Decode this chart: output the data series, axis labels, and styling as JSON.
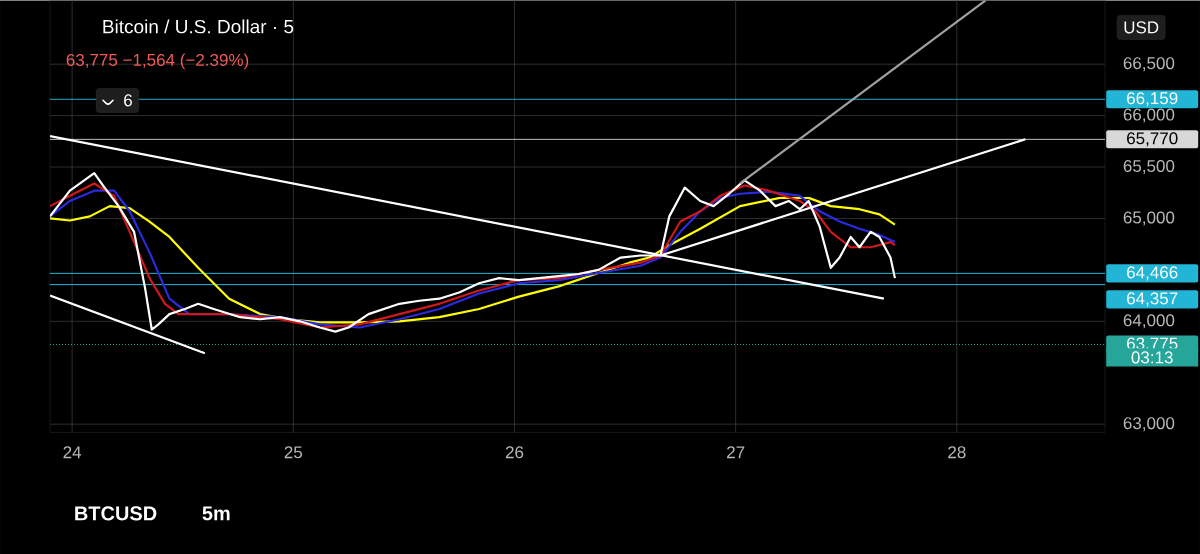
{
  "chart_data": {
    "type": "line",
    "title": "Bitcoin / U.S. Dollar · 5",
    "annotations": [
      "63,775  −1,564 (−2.39%)",
      "6",
      "USD",
      "03:13",
      "BTCUSD",
      "5m"
    ],
    "xlim": [
      23.9,
      28.67
    ],
    "ylim": [
      62920,
      67120
    ],
    "xticks": [
      24,
      25,
      26,
      27,
      28
    ],
    "yticks": [
      {
        "value": 63000,
        "label": "63,000"
      },
      {
        "value": 64000,
        "label": "64,000"
      },
      {
        "value": 65000,
        "label": "65,000"
      },
      {
        "value": 65500,
        "label": "65,500"
      },
      {
        "value": 66000,
        "label": "66,000"
      },
      {
        "value": 66500,
        "label": "66,500"
      }
    ],
    "grid": true,
    "series": [
      {
        "color": "#ffff00",
        "x": [
          23.9,
          23.99,
          24.08,
          24.17,
          24.26,
          24.35,
          24.44,
          24.57,
          24.71,
          24.85,
          24.98,
          25.12,
          25.3,
          25.48,
          25.66,
          25.84,
          26.02,
          26.2,
          26.38,
          26.52,
          26.61,
          26.7,
          26.84,
          27.02,
          27.2,
          27.33,
          27.43,
          27.56,
          27.65,
          27.72
        ],
        "values": [
          65000,
          64980,
          65020,
          65120,
          65100,
          64970,
          64820,
          64520,
          64220,
          64070,
          64020,
          63990,
          63990,
          64000,
          64040,
          64120,
          64240,
          64340,
          64470,
          64570,
          64620,
          64740,
          64900,
          65120,
          65200,
          65200,
          65120,
          65090,
          65040,
          64940
        ]
      },
      {
        "color": "#2a2ae0",
        "x": [
          23.9,
          23.99,
          24.1,
          24.19,
          24.26,
          24.35,
          24.44,
          24.53,
          24.71,
          24.94,
          25.12,
          25.3,
          25.48,
          25.66,
          25.84,
          26.02,
          26.2,
          26.38,
          26.57,
          26.66,
          26.75,
          26.84,
          26.93,
          27.02,
          27.15,
          27.29,
          27.38,
          27.47,
          27.56,
          27.65,
          27.72
        ],
        "values": [
          65020,
          65170,
          65270,
          65270,
          65070,
          64670,
          64220,
          64070,
          64070,
          64040,
          63970,
          63940,
          64020,
          64120,
          64270,
          64370,
          64400,
          64470,
          64540,
          64620,
          64870,
          65070,
          65200,
          65240,
          65260,
          65220,
          65070,
          64970,
          64900,
          64840,
          64770
        ]
      },
      {
        "color": "#d01818",
        "x": [
          23.9,
          23.99,
          24.1,
          24.19,
          24.26,
          24.35,
          24.42,
          24.48,
          24.71,
          24.94,
          25.12,
          25.3,
          25.48,
          25.66,
          25.84,
          26.02,
          26.2,
          26.38,
          26.57,
          26.66,
          26.75,
          26.84,
          26.93,
          27.04,
          27.15,
          27.29,
          27.36,
          27.43,
          27.52,
          27.61,
          27.7,
          27.72
        ],
        "values": [
          65120,
          65220,
          65340,
          65220,
          64870,
          64420,
          64170,
          64070,
          64070,
          64020,
          63940,
          63970,
          64070,
          64170,
          64300,
          64400,
          64420,
          64500,
          64570,
          64640,
          64970,
          65070,
          65220,
          65320,
          65270,
          65170,
          65070,
          64870,
          64720,
          64720,
          64770,
          64740
        ]
      },
      {
        "color": "#ffffff",
        "x": [
          23.9,
          23.99,
          24.1,
          24.14,
          24.21,
          24.28,
          24.33,
          24.36,
          24.39,
          24.44,
          24.51,
          24.57,
          24.64,
          24.76,
          24.85,
          24.94,
          25.03,
          25.12,
          25.19,
          25.25,
          25.34,
          25.48,
          25.57,
          25.66,
          25.75,
          25.84,
          25.93,
          26.02,
          26.11,
          26.2,
          26.29,
          26.38,
          26.48,
          26.57,
          26.66,
          26.7,
          26.77,
          26.84,
          26.9,
          26.97,
          27.04,
          27.11,
          27.18,
          27.24,
          27.29,
          27.33,
          27.38,
          27.43,
          27.47,
          27.52,
          27.56,
          27.61,
          27.65,
          27.7,
          27.72
        ],
        "values": [
          65020,
          65270,
          65440,
          65320,
          65120,
          64870,
          64320,
          63920,
          63970,
          64070,
          64120,
          64170,
          64120,
          64040,
          64020,
          64040,
          64000,
          63940,
          63900,
          63940,
          64070,
          64170,
          64200,
          64220,
          64280,
          64370,
          64420,
          64400,
          64420,
          64440,
          64460,
          64500,
          64620,
          64640,
          64640,
          65020,
          65300,
          65170,
          65120,
          65240,
          65370,
          65270,
          65120,
          65170,
          65090,
          65170,
          64920,
          64520,
          64620,
          64820,
          64720,
          64870,
          64820,
          64620,
          64420
        ]
      },
      {
        "color": "#ffffff",
        "x": [
          23.9,
          27.67
        ],
        "values": [
          65800,
          64220
        ]
      },
      {
        "color": "#ffffff",
        "x": [
          23.9,
          24.6
        ],
        "values": [
          64250,
          63690
        ]
      },
      {
        "color": "#ffffff",
        "x": [
          26.66,
          28.31
        ],
        "values": [
          64640,
          65770
        ]
      },
      {
        "color": "#a0a0a0",
        "x": [
          27.02,
          28.13
        ],
        "values": [
          65340,
          67120
        ]
      }
    ],
    "ref_lines": [
      {
        "axis": "y",
        "value": 66159,
        "label": "66,159",
        "color": "#22b5d6",
        "line_style": "solid"
      },
      {
        "axis": "y",
        "value": 65770,
        "label": "65,770",
        "color": "#d8d8d8",
        "line_style": "solid"
      },
      {
        "axis": "y",
        "value": 64466,
        "label": "64,466",
        "color": "#22b5d6",
        "line_style": "solid"
      },
      {
        "axis": "y",
        "value": 64357,
        "label": "64,357",
        "color": "#22b5d6",
        "line_style": "solid"
      },
      {
        "axis": "y",
        "value": 63775,
        "label": "63,775",
        "color": "#26a69a",
        "line_style": "dotted"
      }
    ]
  }
}
